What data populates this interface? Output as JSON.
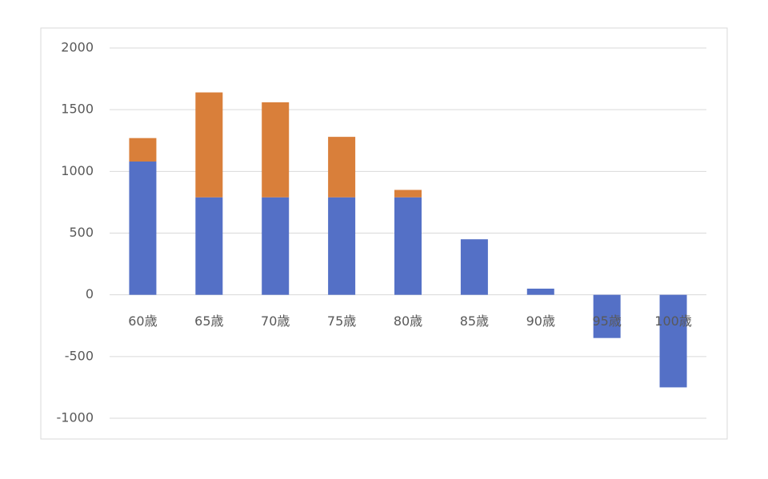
{
  "chart_data": {
    "type": "stacked_bar",
    "categories": [
      "60歳",
      "65歳",
      "70歳",
      "75歳",
      "80歳",
      "85歳",
      "90歳",
      "95歳",
      "100歳"
    ],
    "series": [
      {
        "color": "#5470c6",
        "values": [
          1080,
          790,
          790,
          790,
          790,
          450,
          50,
          -350,
          -750
        ]
      },
      {
        "color": "#d97f3a",
        "values": [
          190,
          850,
          770,
          490,
          60,
          null,
          null,
          null,
          null
        ]
      }
    ],
    "ylim": [
      -1000,
      2000
    ],
    "yticks": [
      -1000,
      -500,
      0,
      500,
      1000,
      1500,
      2000
    ],
    "grid": true
  }
}
